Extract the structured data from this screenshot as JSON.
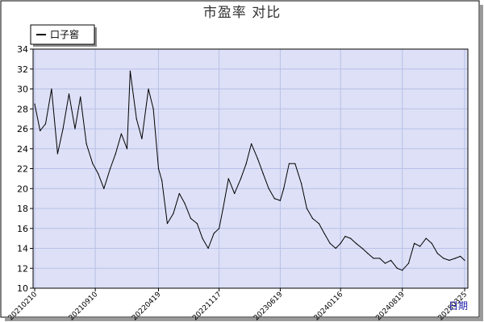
{
  "chart_data": {
    "type": "line",
    "title": "市盈率  对比",
    "xlabel": "日期",
    "ylabel": "",
    "ylim": [
      10,
      34
    ],
    "yticks": [
      10,
      12,
      14,
      16,
      18,
      20,
      22,
      24,
      26,
      28,
      30,
      32,
      34
    ],
    "xticks": [
      "20210210",
      "20210910",
      "20220419",
      "20221117",
      "20230619",
      "20240116",
      "20240819",
      "20250325"
    ],
    "grid": true,
    "legend_position": "top-left",
    "colors": {
      "line": "#000000",
      "plot_bg": "#dde0f6",
      "grid": "#b8c0e8",
      "border": "#000000"
    },
    "series": [
      {
        "name": "口子窖",
        "x": [
          "20210210",
          "20210301",
          "20210320",
          "20210410",
          "20210501",
          "20210520",
          "20210610",
          "20210701",
          "20210720",
          "20210810",
          "20210901",
          "20210920",
          "20211010",
          "20211101",
          "20211120",
          "20211210",
          "20211230",
          "20220110",
          "20220201",
          "20220220",
          "20220315",
          "20220401",
          "20220419",
          "20220501",
          "20220520",
          "20220610",
          "20220701",
          "20220720",
          "20220810",
          "20220901",
          "20220920",
          "20221010",
          "20221030",
          "20221117",
          "20221201",
          "20221220",
          "20230110",
          "20230201",
          "20230220",
          "20230310",
          "20230401",
          "20230420",
          "20230510",
          "20230530",
          "20230619",
          "20230701",
          "20230720",
          "20230810",
          "20230901",
          "20230920",
          "20231010",
          "20231101",
          "20231120",
          "20231210",
          "20231230",
          "20240116",
          "20240201",
          "20240220",
          "20240310",
          "20240401",
          "20240420",
          "20240510",
          "20240601",
          "20240620",
          "20240710",
          "20240801",
          "20240819",
          "20240910",
          "20240930",
          "20241020",
          "20241110",
          "20241130",
          "20241220",
          "20250110",
          "20250130",
          "20250220",
          "20250310",
          "20250325"
        ],
        "values": [
          28.5,
          25.8,
          26.5,
          30.0,
          23.5,
          26.0,
          29.5,
          26.0,
          29.2,
          24.5,
          22.5,
          21.5,
          20.0,
          22.0,
          23.5,
          25.5,
          24.0,
          31.8,
          27.0,
          25.0,
          30.0,
          28.0,
          22.0,
          20.8,
          16.5,
          17.5,
          19.5,
          18.5,
          17.0,
          16.5,
          15.0,
          14.0,
          15.5,
          16.0,
          18.0,
          21.0,
          19.5,
          21.0,
          22.5,
          24.5,
          23.0,
          21.5,
          20.0,
          19.0,
          18.8,
          20.0,
          22.5,
          22.5,
          20.5,
          18.0,
          17.0,
          16.5,
          15.5,
          14.5,
          14.0,
          14.5,
          15.2,
          15.0,
          14.5,
          14.0,
          13.5,
          13.0,
          13.0,
          12.5,
          12.8,
          12.0,
          11.8,
          12.5,
          14.5,
          14.2,
          15.0,
          14.5,
          13.5,
          13.0,
          12.8,
          13.0,
          13.2,
          12.8
        ]
      }
    ]
  }
}
